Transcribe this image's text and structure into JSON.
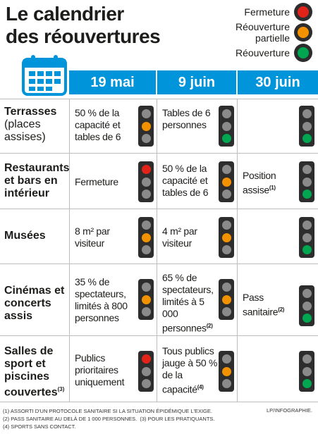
{
  "title": {
    "line1": "Le calendrier",
    "line2": "des réouvertures"
  },
  "legend": [
    {
      "label_line1": "Fermeture",
      "label_line2": "",
      "color": "#e2231a"
    },
    {
      "label_line1": "Réouverture",
      "label_line2": "partielle",
      "color": "#f39200"
    },
    {
      "label_line1": "Réouverture",
      "label_line2": "",
      "color": "#00a650"
    }
  ],
  "columns": [
    "19 mai",
    "9 juin",
    "30 juin"
  ],
  "rows": [
    {
      "label_bold": "Terrasses",
      "label_rest": "(places\nassises)",
      "cells": [
        {
          "text": "50 % de la capacité et tables de 6",
          "note": "",
          "light": "orange"
        },
        {
          "text": "Tables de 6 personnes",
          "note": "",
          "light": "green"
        },
        {
          "text": "",
          "note": "",
          "light": "green"
        }
      ]
    },
    {
      "label_bold": "Restaurants et bars en intérieur",
      "label_rest": "",
      "cells": [
        {
          "text": "Fermeture",
          "note": "",
          "light": "red"
        },
        {
          "text": "50 % de la capacité et tables de 6",
          "note": "",
          "light": "orange"
        },
        {
          "text": "Position assise",
          "note": "(1)",
          "light": "green"
        }
      ]
    },
    {
      "label_bold": "Musées",
      "label_rest": "",
      "cells": [
        {
          "text": "8 m² par visiteur",
          "note": "",
          "light": "orange"
        },
        {
          "text": "4 m² par visiteur",
          "note": "",
          "light": "orange"
        },
        {
          "text": "",
          "note": "",
          "light": "green"
        }
      ]
    },
    {
      "label_bold": "Cinémas et concerts assis",
      "label_rest": "",
      "cells": [
        {
          "text": "35 % de spectateurs, limités à 800 personnes",
          "note": "",
          "light": "orange"
        },
        {
          "text": "65 % de spectateurs, limités à 5 000 personnes",
          "note": "(2)",
          "light": "orange"
        },
        {
          "text": "Pass sanitaire",
          "note": "(2)",
          "light": "green"
        }
      ]
    },
    {
      "label_bold": "Salles de sport et piscines couvertes",
      "label_rest": "",
      "label_note": "(3)",
      "cells": [
        {
          "text": "Publics prioritaires uniquement",
          "note": "",
          "light": "red"
        },
        {
          "text": "Tous publics jauge à 50 % de la capacité",
          "note": "(4)",
          "light": "orange"
        },
        {
          "text": "",
          "note": "",
          "light": "green"
        }
      ]
    }
  ],
  "footnotes": {
    "n1": "(1) Assorti d'un protocole sanitaire si la situation épidémique l'exige.",
    "n2": "(2) Pass sanitaire au delà de 1 000 personnes.",
    "n3": "(3) Pour les pratiquants.",
    "n4": "(4) Sports sans contact."
  },
  "credit": "LP/INFOGRAPHIE."
}
